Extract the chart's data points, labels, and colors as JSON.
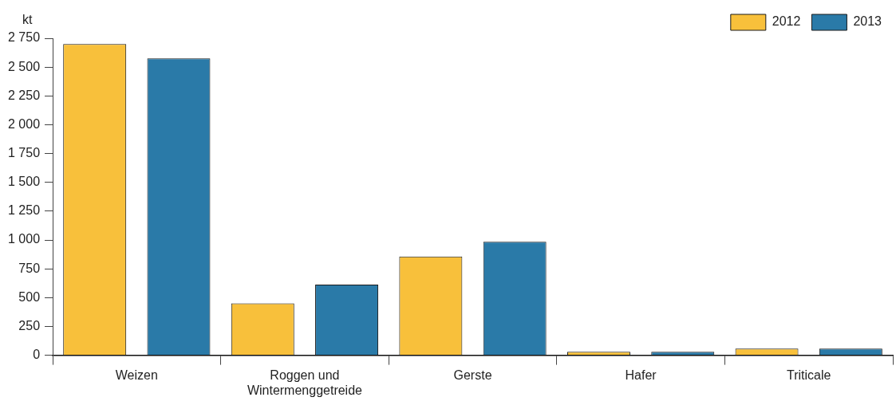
{
  "chart_data": {
    "type": "bar",
    "ylabel": "kt",
    "categories": [
      "Weizen",
      "Roggen und Wintermenggetreide",
      "Gerste",
      "Hafer",
      "Triticale"
    ],
    "series": [
      {
        "name": "2012",
        "color": "#f8c03b",
        "values": [
          2700,
          450,
          856,
          30,
          58
        ]
      },
      {
        "name": "2013",
        "color": "#2a7aa8",
        "values": [
          2575,
          613,
          984,
          30,
          58
        ]
      }
    ],
    "ylim": [
      0,
      2750
    ],
    "yticks": [
      0,
      250,
      500,
      750,
      {
        "value": 1000,
        "label": "1 000"
      },
      {
        "value": 1250,
        "label": "1 250"
      },
      {
        "value": 1500,
        "label": "1 500"
      },
      {
        "value": 1750,
        "label": "1 750"
      },
      {
        "value": 2000,
        "label": "2 000"
      },
      {
        "value": 2250,
        "label": "2 250"
      },
      {
        "value": 2500,
        "label": "2 500"
      },
      {
        "value": 2750,
        "label": "2 750"
      }
    ],
    "grid": false,
    "legend": "top right"
  }
}
